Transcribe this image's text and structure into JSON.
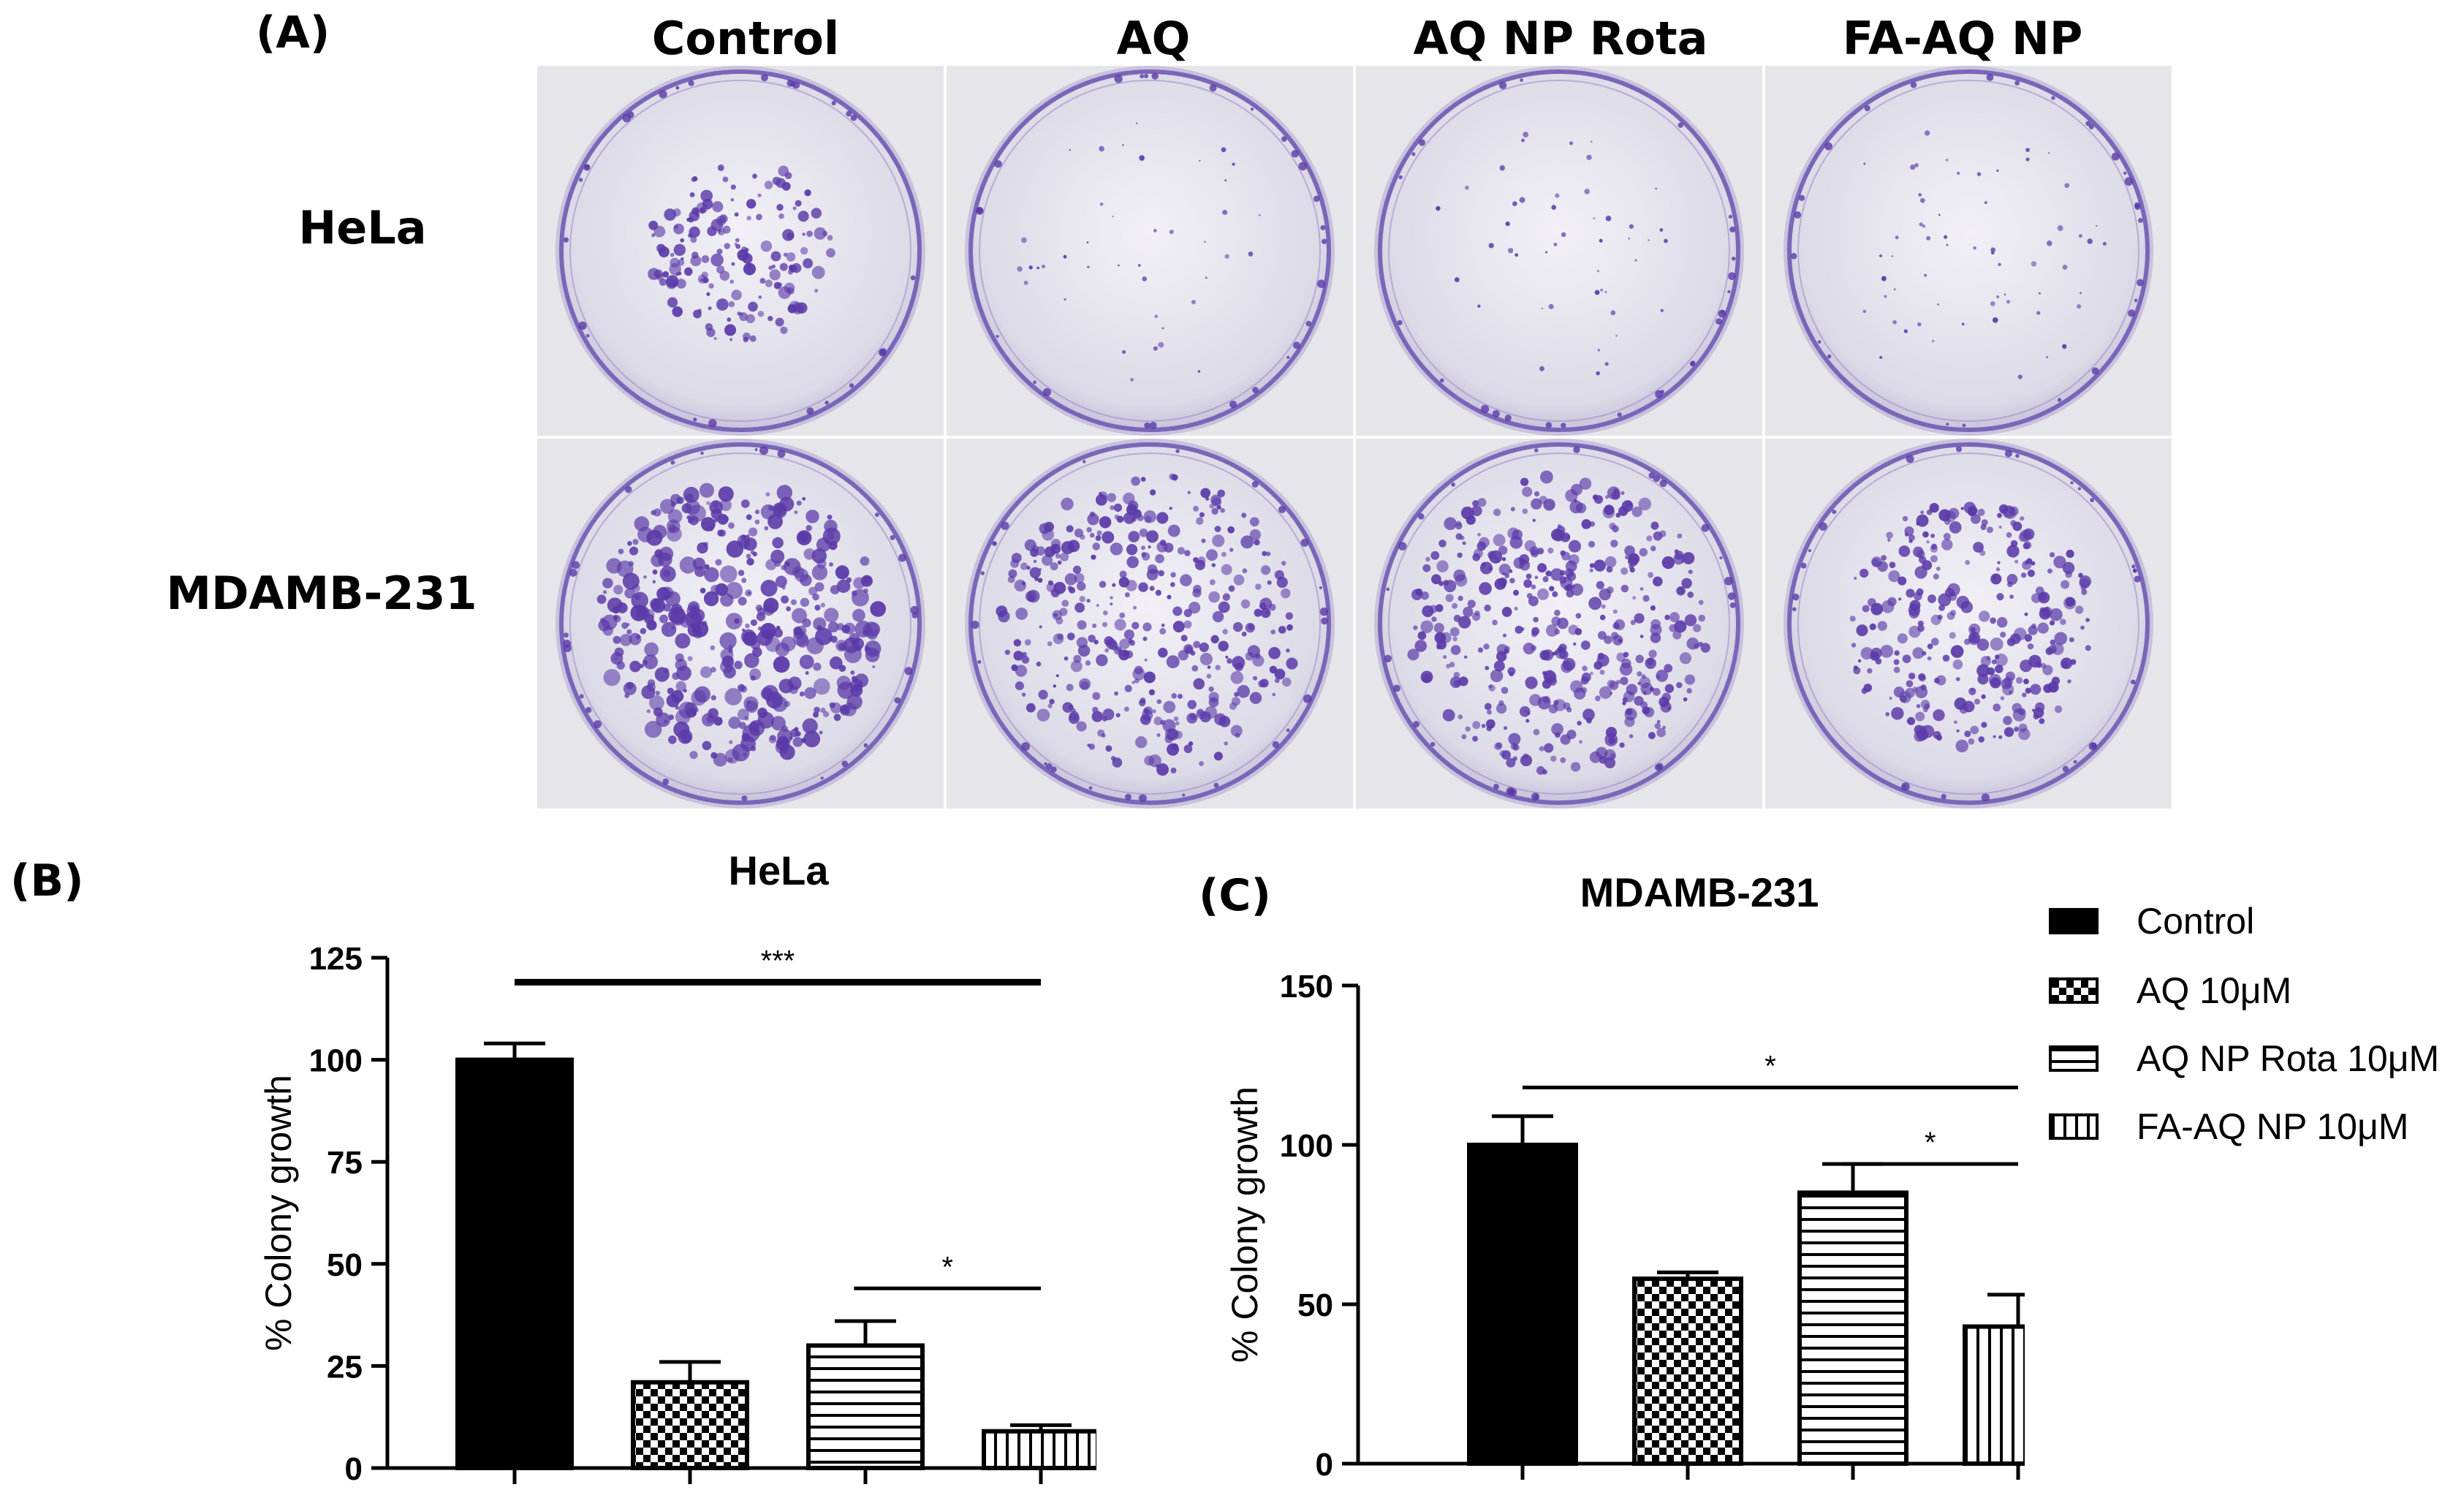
{
  "panel_labels": {
    "a": "(A)",
    "b": "(B)",
    "c": "(C)"
  },
  "plate_panel": {
    "columns": [
      "Control",
      "AQ",
      "AQ NP Rota",
      "FA-AQ NP"
    ],
    "rows": [
      "HeLa",
      "MDAMB-231"
    ],
    "stain_color": "#5a3aa8"
  },
  "legend": [
    "Control",
    "AQ 10μM",
    "AQ NP Rota 10μM",
    "FA-AQ NP 10μM"
  ],
  "chart_data": [
    {
      "type": "bar",
      "title": "HeLa",
      "ylabel": "% Colony growth",
      "categories": [
        "Control",
        "AQ 10μM",
        "AQ NP Rota 10μM",
        "FA-AQ NP 10μM"
      ],
      "values": [
        100,
        21,
        30,
        9
      ],
      "errors": [
        4,
        5,
        6,
        1.5
      ],
      "ylim": [
        0,
        125
      ],
      "yticks": [
        0,
        25,
        50,
        75,
        100,
        125
      ],
      "significance": [
        {
          "from": 0,
          "to": 3,
          "y": 119,
          "label": "***"
        },
        {
          "from": 2,
          "to": 3,
          "y": 44,
          "label": "*"
        }
      ]
    },
    {
      "type": "bar",
      "title": "MDAMB-231",
      "ylabel": "% Colony growth",
      "categories": [
        "Control",
        "AQ 10μM",
        "AQ NP Rota 10μM",
        "FA-AQ NP 10μM"
      ],
      "values": [
        100,
        58,
        85,
        43
      ],
      "errors": [
        9,
        2,
        9,
        10
      ],
      "ylim": [
        0,
        150
      ],
      "yticks": [
        0,
        50,
        100,
        150
      ],
      "significance": [
        {
          "from": 0,
          "to": 3,
          "y": 118,
          "label": "*"
        },
        {
          "from": 2,
          "to": 3,
          "y": 94,
          "label": "*"
        }
      ]
    }
  ]
}
